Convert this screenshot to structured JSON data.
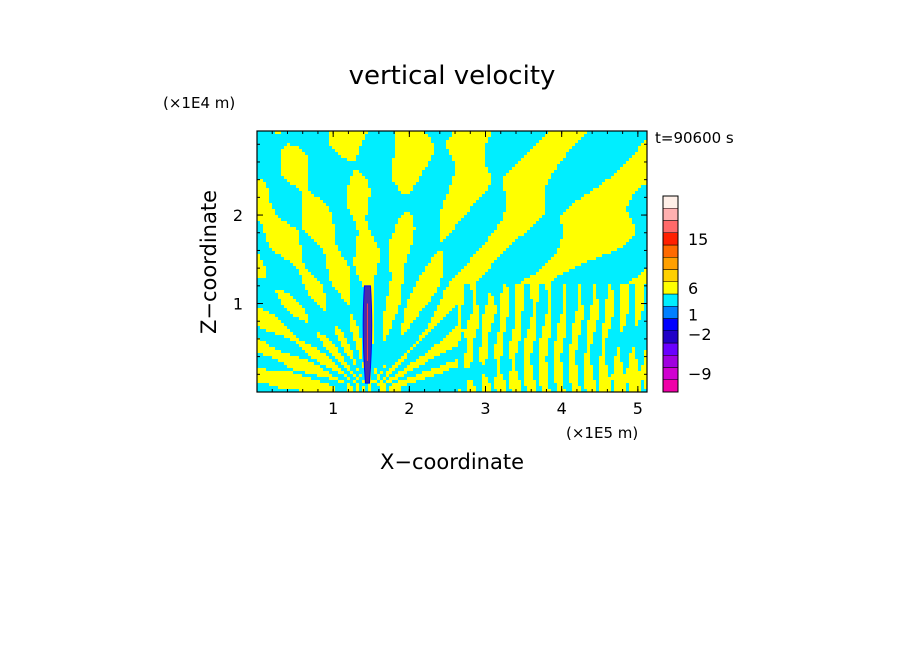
{
  "chart_data": {
    "type": "heatmap",
    "title": "vertical velocity",
    "xlabel": "X−coordinate",
    "ylabel": "Z−coordinate",
    "x_unit": "(×1E5 m)",
    "y_unit": "(×1E4 m)",
    "time_label": "t=90600 s",
    "xlim": [
      0,
      5.12
    ],
    "ylim": [
      0,
      2.95
    ],
    "x_ticks": [
      1,
      2,
      3,
      4,
      5
    ],
    "y_ticks": [
      1,
      2
    ],
    "field_colors": {
      "positive": "#ffff00",
      "negative": "#00eeff"
    },
    "updraft_core": {
      "x": 1.45,
      "z_range": [
        0.1,
        1.2
      ],
      "color": "#4b2ca8"
    },
    "colorbar": {
      "levels": [
        {
          "color": "#f000a8"
        },
        {
          "color": "#d000d0"
        },
        {
          "color": "#a000e0"
        },
        {
          "color": "#6a00ff"
        },
        {
          "color": "#2000c8"
        },
        {
          "color": "#0000ff"
        },
        {
          "color": "#0080ff"
        },
        {
          "color": "#00eeff"
        },
        {
          "color": "#ffff00"
        },
        {
          "color": "#ffd000"
        },
        {
          "color": "#ffa000"
        },
        {
          "color": "#ff6a00"
        },
        {
          "color": "#ff2000"
        },
        {
          "color": "#ff6a6a"
        },
        {
          "color": "#ffb0b0"
        },
        {
          "color": "#ffefe8"
        }
      ],
      "labels": [
        "15",
        "6",
        "1",
        "−2",
        "−9"
      ]
    }
  }
}
